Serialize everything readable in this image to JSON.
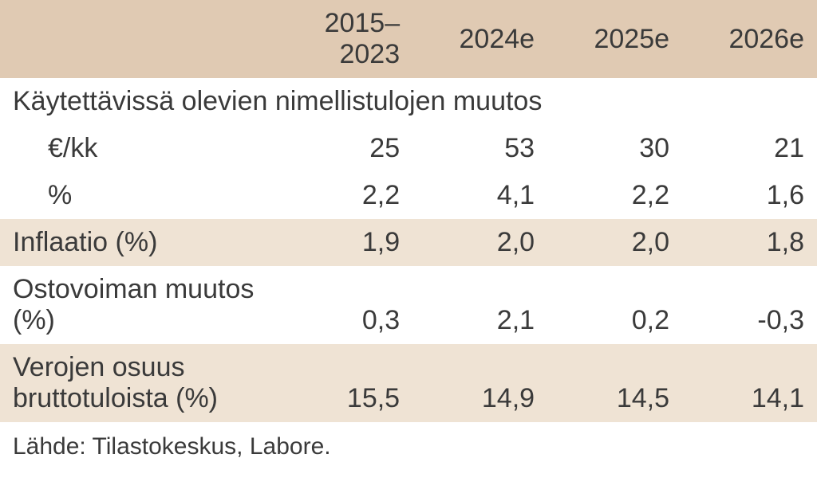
{
  "table": {
    "columns": [
      "",
      "2015–2023",
      "2024e",
      "2025e",
      "2026e"
    ],
    "section_title": "Käytettävissä olevien nimellistulojen muutos",
    "rows": [
      {
        "label": "€/kk",
        "values": [
          "25",
          "53",
          "30",
          "21"
        ],
        "indent": true,
        "shade": false
      },
      {
        "label": "%",
        "values": [
          "2,2",
          "4,1",
          "2,2",
          "1,6"
        ],
        "indent": true,
        "shade": false
      },
      {
        "label": "Inflaatio (%)",
        "values": [
          "1,9",
          "2,0",
          "2,0",
          "1,8"
        ],
        "indent": false,
        "shade": true
      },
      {
        "label": "Ostovoiman muutos (%)",
        "values": [
          "0,3",
          "2,1",
          "0,2",
          "-0,3"
        ],
        "indent": false,
        "shade": false
      },
      {
        "label": "Verojen osuus bruttotuloista (%)",
        "values": [
          "15,5",
          "14,9",
          "14,5",
          "14,1"
        ],
        "indent": false,
        "shade": true
      }
    ],
    "source": "Lähde: Tilastokeskus, Labore.",
    "colors": {
      "header_bg": "#e0cab3",
      "shade_bg": "#efe3d4",
      "plain_bg": "#ffffff",
      "text": "#3a3a3a"
    },
    "font_sizes": {
      "body": 34,
      "source": 30
    }
  }
}
